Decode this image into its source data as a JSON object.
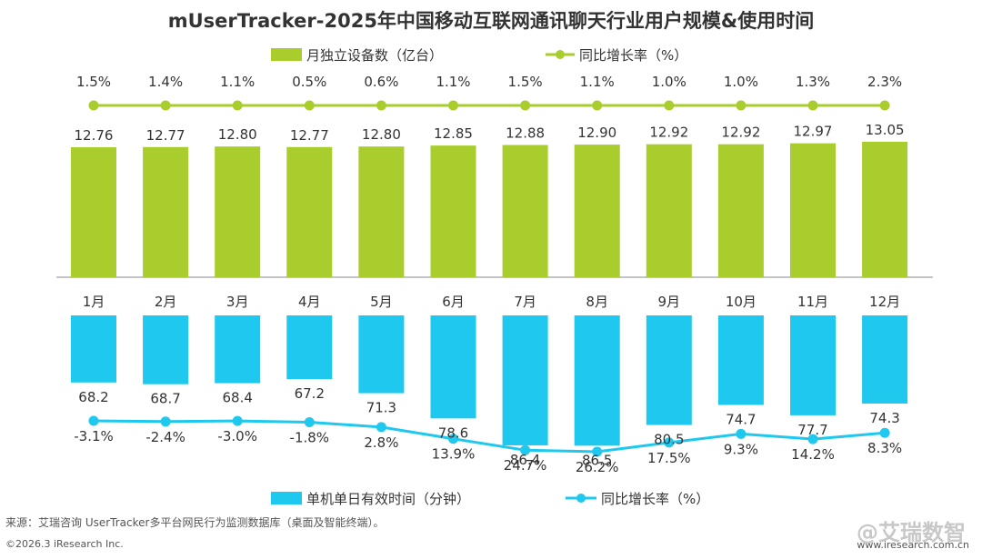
{
  "title": "mUserTracker-2025年中国移动互联网通讯聊天行业用户规模&使用时间",
  "colors": {
    "green": "#a9cd2c",
    "blue": "#1ec8ee",
    "axis": "#888888",
    "text": "#333333"
  },
  "chart_data": [
    {
      "type": "bar+line",
      "categories": [
        "1月",
        "2月",
        "3月",
        "4月",
        "5月",
        "6月",
        "7月",
        "8月",
        "9月",
        "10月",
        "11月",
        "12月"
      ],
      "bar_series": {
        "name": "月独立设备数（亿台）",
        "values": [
          12.76,
          12.77,
          12.8,
          12.77,
          12.8,
          12.85,
          12.88,
          12.9,
          12.92,
          12.92,
          12.97,
          13.05
        ],
        "labels": [
          "12.76",
          "12.77",
          "12.80",
          "12.77",
          "12.80",
          "12.85",
          "12.88",
          "12.90",
          "12.92",
          "12.92",
          "12.97",
          "13.05"
        ]
      },
      "line_series": {
        "name": "同比增长率（%）",
        "values": [
          1.5,
          1.4,
          1.1,
          0.5,
          0.6,
          1.1,
          1.5,
          1.1,
          1.0,
          1.0,
          1.3,
          2.3
        ],
        "labels": [
          "1.5%",
          "1.4%",
          "1.1%",
          "0.5%",
          "0.6%",
          "1.1%",
          "1.5%",
          "1.1%",
          "1.0%",
          "1.0%",
          "1.3%",
          "2.3%"
        ]
      }
    },
    {
      "type": "bar+line",
      "categories": [
        "1月",
        "2月",
        "3月",
        "4月",
        "5月",
        "6月",
        "7月",
        "8月",
        "9月",
        "10月",
        "11月",
        "12月"
      ],
      "bar_series": {
        "name": "单机单日有效时间（分钟）",
        "values": [
          68.2,
          68.7,
          68.4,
          67.2,
          71.3,
          78.6,
          86.4,
          86.5,
          80.5,
          74.7,
          77.7,
          74.3
        ],
        "labels": [
          "68.2",
          "68.7",
          "68.4",
          "67.2",
          "71.3",
          "78.6",
          "86.4",
          "86.5",
          "80.5",
          "74.7",
          "77.7",
          "74.3"
        ]
      },
      "line_series": {
        "name": "同比增长率（%）",
        "values": [
          -3.1,
          -2.4,
          -3.0,
          -1.8,
          2.8,
          13.9,
          24.7,
          26.2,
          17.5,
          9.3,
          14.2,
          8.3
        ],
        "labels": [
          "-3.1%",
          "-2.4%",
          "-3.0%",
          "-1.8%",
          "2.8%",
          "13.9%",
          "24.7%",
          "26.2%",
          "17.5%",
          "9.3%",
          "14.2%",
          "8.3%"
        ]
      }
    }
  ],
  "footer": {
    "source": "来源：艾瑞咨询 UserTracker多平台网民行为监测数据库（桌面及智能终端）。",
    "copyright": "©2026.3 iResearch Inc.",
    "url": "www.iresearch.com.cn",
    "watermark": "@艾瑞数智"
  }
}
